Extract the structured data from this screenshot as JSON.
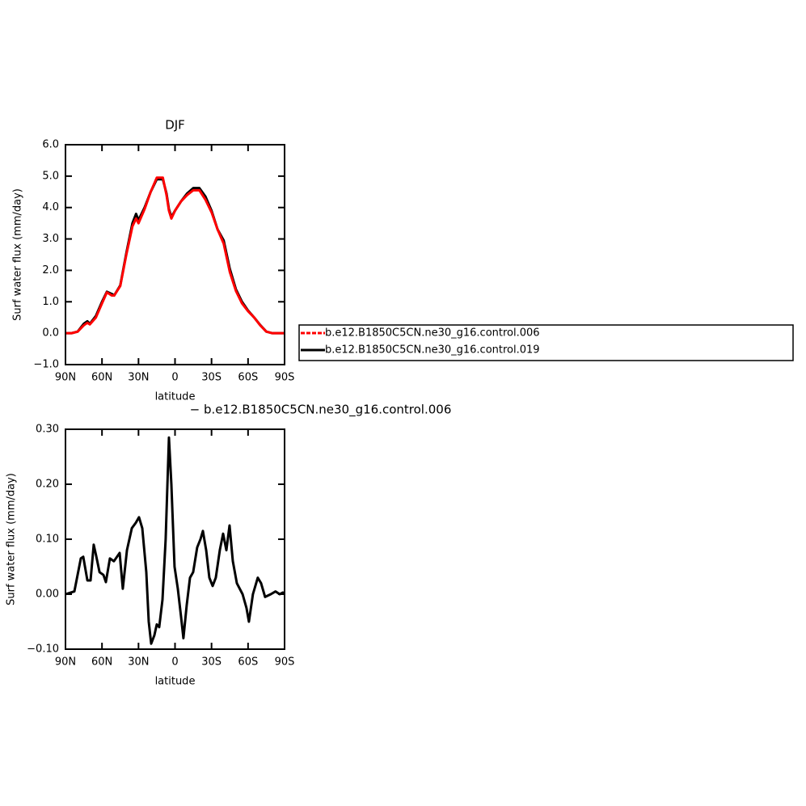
{
  "chart_data": [
    {
      "type": "line",
      "title": "DJF",
      "xlabel": "latitude",
      "ylabel": "Surf water flux (mm/day)",
      "x": [
        90,
        85,
        80,
        75,
        72,
        70,
        65,
        60,
        56,
        52,
        50,
        45,
        40,
        35,
        32,
        30,
        25,
        20,
        15,
        10,
        7,
        5,
        3,
        0,
        -5,
        -10,
        -15,
        -20,
        -25,
        -30,
        -35,
        -40,
        -45,
        -50,
        -55,
        -60,
        -65,
        -70,
        -75,
        -80,
        -85,
        -90
      ],
      "series": [
        {
          "name": "b.e12.B1850C5CN.ne30_g16.control.006",
          "color": "#ff0000",
          "values": [
            0.0,
            0.0,
            0.05,
            0.25,
            0.33,
            0.28,
            0.5,
            0.95,
            1.3,
            1.2,
            1.2,
            1.5,
            2.5,
            3.4,
            3.65,
            3.5,
            3.95,
            4.5,
            4.95,
            4.95,
            4.4,
            3.9,
            3.65,
            3.9,
            4.2,
            4.4,
            4.55,
            4.55,
            4.25,
            3.85,
            3.3,
            2.85,
            1.95,
            1.35,
            0.95,
            0.7,
            0.5,
            0.25,
            0.05,
            0.0,
            0.0,
            0.0
          ]
        },
        {
          "name": "b.e12.B1850C5CN.ne30_g16.control.019",
          "color": "#000000",
          "values": [
            0.0,
            0.0,
            0.05,
            0.3,
            0.38,
            0.3,
            0.55,
            1.0,
            1.32,
            1.25,
            1.2,
            1.52,
            2.55,
            3.5,
            3.8,
            3.6,
            4.0,
            4.5,
            4.9,
            4.9,
            4.45,
            3.95,
            3.7,
            3.9,
            4.2,
            4.45,
            4.62,
            4.62,
            4.35,
            3.9,
            3.3,
            2.95,
            2.05,
            1.4,
            1.0,
            0.72,
            0.5,
            0.26,
            0.05,
            0.0,
            0.0,
            0.0
          ]
        }
      ],
      "xlim": [
        90,
        -90
      ],
      "xticks": [
        {
          "value": 90,
          "label": "90N"
        },
        {
          "value": 60,
          "label": "60N"
        },
        {
          "value": 30,
          "label": "30N"
        },
        0,
        {
          "value": -30,
          "label": "30S"
        },
        {
          "value": -60,
          "label": "60S"
        },
        {
          "value": -90,
          "label": "90S"
        }
      ],
      "ylim": [
        -1,
        6
      ],
      "yticks": [
        {
          "value": -1,
          "label": "−1.0"
        },
        {
          "value": 0,
          "label": "0.0"
        },
        {
          "value": 1,
          "label": "1.0"
        },
        {
          "value": 2,
          "label": "2.0"
        },
        {
          "value": 3,
          "label": "3.0"
        },
        {
          "value": 4,
          "label": "4.0"
        },
        {
          "value": 5,
          "label": "5.0"
        },
        {
          "value": 6,
          "label": "6.0"
        }
      ],
      "legend": "right"
    },
    {
      "type": "line",
      "title": "− b.e12.B1850C5CN.ne30_g16.control.006",
      "xlabel": "latitude",
      "ylabel": "Surf water flux (mm/day)",
      "x": [
        90,
        82.7,
        77.4,
        75.4,
        72,
        69.4,
        66.8,
        64.8,
        62,
        58.8,
        56.8,
        53.5,
        50.2,
        45.5,
        42.9,
        39.5,
        35.5,
        32.2,
        29.6,
        26.9,
        23.6,
        21.6,
        19.6,
        17,
        15,
        13,
        10.3,
        7.7,
        5,
        3,
        0.4,
        -2.3,
        -4.9,
        -6.9,
        -9.6,
        -12.3,
        -14.9,
        -18.2,
        -20.9,
        -22.9,
        -25.6,
        -28.2,
        -30.9,
        -33.5,
        -36.8,
        -39.5,
        -42.2,
        -44.8,
        -47.5,
        -50.8,
        -55.5,
        -58.7,
        -60.7,
        -64,
        -68,
        -70.7,
        -74,
        -78.7,
        -82.6,
        -86,
        -88.6,
        -90
      ],
      "series": [
        {
          "color": "#000000",
          "values": [
            0.0,
            0.005,
            0.065,
            0.068,
            0.025,
            0.025,
            0.09,
            0.07,
            0.04,
            0.035,
            0.022,
            0.065,
            0.06,
            0.075,
            0.01,
            0.08,
            0.12,
            0.13,
            0.14,
            0.12,
            0.04,
            -0.05,
            -0.09,
            -0.075,
            -0.055,
            -0.06,
            -0.01,
            0.1,
            0.285,
            0.2,
            0.05,
            0.01,
            -0.04,
            -0.08,
            -0.02,
            0.03,
            0.04,
            0.085,
            0.1,
            0.115,
            0.08,
            0.03,
            0.015,
            0.03,
            0.08,
            0.11,
            0.08,
            0.125,
            0.06,
            0.02,
            0.0,
            -0.025,
            -0.05,
            0.0,
            0.03,
            0.02,
            -0.005,
            0.0,
            0.005,
            0.0,
            0.003,
            0.0
          ]
        }
      ],
      "xlim": [
        90,
        -90
      ],
      "xticks": [
        {
          "value": 90,
          "label": "90N"
        },
        {
          "value": 60,
          "label": "60N"
        },
        {
          "value": 30,
          "label": "30N"
        },
        0,
        {
          "value": -30,
          "label": "30S"
        },
        {
          "value": -60,
          "label": "60S"
        },
        {
          "value": -90,
          "label": "90S"
        }
      ],
      "ylim": [
        -0.1,
        0.3
      ],
      "yticks": [
        {
          "value": -0.1,
          "label": "−0.10"
        },
        {
          "value": 0,
          "label": "0.00"
        },
        {
          "value": 0.1,
          "label": "0.10"
        },
        {
          "value": 0.2,
          "label": "0.20"
        },
        {
          "value": 0.3,
          "label": "0.30"
        }
      ]
    }
  ]
}
